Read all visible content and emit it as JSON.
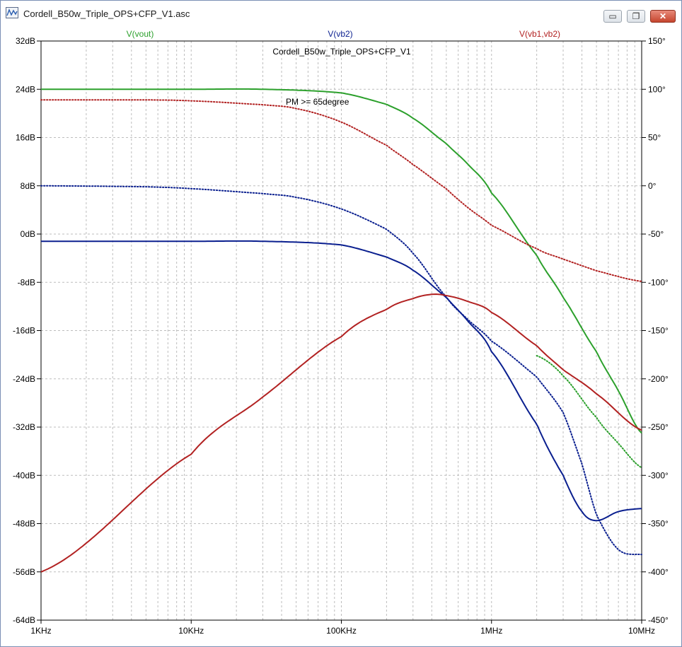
{
  "window": {
    "title": "Cordell_B50w_Triple_OPS+CFP_V1.asc",
    "icons": {
      "app": "ltspice-waveform-icon",
      "minimize": "minimize-icon",
      "maximize": "maximize-icon",
      "close": "close-icon"
    },
    "min_glyph": "▭",
    "max_glyph": "❐",
    "close_glyph": "✕"
  },
  "colors": {
    "vout": "#2ca02c",
    "vb2": "#0a1f8f",
    "vb1vb2": "#b22222",
    "grid": "#bdbdbd",
    "axis": "#000000"
  },
  "chart_data": {
    "type": "line",
    "title": "Cordell_B50w_Triple_OPS+CFP_V1",
    "annotation": "PM >= 65degree",
    "xscale": "log",
    "x_ticks": [
      "1KHz",
      "10KHz",
      "100KHz",
      "1MHz",
      "10MHz"
    ],
    "x_tick_values": [
      1000,
      10000,
      100000,
      1000000,
      10000000
    ],
    "xlim": [
      1000,
      10000000
    ],
    "ylim_left_db": [
      -64,
      32
    ],
    "y_left_ticks": [
      "32dB",
      "24dB",
      "16dB",
      "8dB",
      "0dB",
      "-8dB",
      "-16dB",
      "-24dB",
      "-32dB",
      "-40dB",
      "-48dB",
      "-56dB",
      "-64dB"
    ],
    "y_left_tick_values": [
      32,
      24,
      16,
      8,
      0,
      -8,
      -16,
      -24,
      -32,
      -40,
      -48,
      -56,
      -64
    ],
    "ylim_right_deg": [
      -450,
      150
    ],
    "y_right_ticks": [
      "150°",
      "100°",
      "50°",
      "0°",
      "-50°",
      "-100°",
      "-150°",
      "-200°",
      "-250°",
      "-300°",
      "-350°",
      "-400°",
      "-450°"
    ],
    "y_right_tick_values": [
      150,
      100,
      50,
      0,
      -50,
      -100,
      -150,
      -200,
      -250,
      -300,
      -350,
      -400,
      -450
    ],
    "grid": true,
    "legend": [
      "V(vout)",
      "V(vb2)",
      "V(vb1,vb2)"
    ],
    "series": [
      {
        "name": "V(vout)",
        "color_key": "vout",
        "kind": "magnitude",
        "unit": "dB",
        "x": [
          1000,
          10000,
          30000,
          100000,
          200000,
          300000,
          500000,
          700000,
          1000000,
          2000000,
          3000000,
          5000000,
          7000000,
          10000000
        ],
        "y": [
          24,
          24,
          24,
          23.4,
          21.5,
          19.2,
          15.0,
          11.5,
          6.8,
          -3.5,
          -10.5,
          -19.5,
          -26.0,
          -33.0
        ]
      },
      {
        "name": "V(vout)",
        "color_key": "vout",
        "kind": "phase",
        "unit": "deg",
        "x": [
          2000000,
          3000000,
          5000000,
          7000000,
          10000000
        ],
        "y": [
          -176,
          -197,
          -240,
          -267,
          -292
        ]
      },
      {
        "name": "V(vb2)",
        "color_key": "vb2",
        "kind": "magnitude",
        "unit": "dB",
        "x": [
          1000,
          10000,
          30000,
          100000,
          200000,
          300000,
          500000,
          700000,
          1000000,
          2000000,
          3000000,
          4000000,
          5000000,
          7000000,
          10000000
        ],
        "y": [
          -1.2,
          -1.2,
          -1.2,
          -1.8,
          -3.8,
          -6.0,
          -10.5,
          -14.5,
          -19.5,
          -31.5,
          -40.0,
          -46.0,
          -47.5,
          -46.0,
          -45.5
        ]
      },
      {
        "name": "V(vb2)",
        "color_key": "vb2",
        "kind": "phase",
        "unit": "deg",
        "x": [
          1000,
          5000,
          10000,
          30000,
          50000,
          100000,
          200000,
          300000,
          500000,
          700000,
          1000000,
          2000000,
          3000000,
          4000000,
          5000000,
          7000000,
          10000000
        ],
        "y": [
          0,
          -1,
          -3,
          -8,
          -12,
          -24,
          -45,
          -70,
          -115,
          -139,
          -161,
          -198,
          -235,
          -288,
          -341,
          -377,
          -382
        ]
      },
      {
        "name": "V(vb1,vb2)",
        "color_key": "vb1vb2",
        "kind": "magnitude",
        "unit": "dB",
        "x": [
          1000,
          10000,
          30000,
          100000,
          200000,
          300000,
          400000,
          500000,
          700000,
          1000000,
          2000000,
          3000000,
          5000000,
          10000000
        ],
        "y": [
          -56,
          -36.5,
          -27.0,
          -17.0,
          -12.5,
          -10.7,
          -10.0,
          -10.2,
          -11.2,
          -13.0,
          -18.5,
          -22.5,
          -26.5,
          -32.5
        ]
      },
      {
        "name": "V(vb1,vb2)",
        "color_key": "vb1vb2",
        "kind": "phase",
        "unit": "deg",
        "x": [
          1000,
          5000,
          10000,
          30000,
          50000,
          100000,
          200000,
          300000,
          500000,
          700000,
          1000000,
          2000000,
          3000000,
          5000000,
          10000000
        ],
        "y": [
          89,
          89,
          88,
          84,
          80,
          66,
          42,
          22,
          -3,
          -23,
          -41,
          -65,
          -76,
          -88,
          -99
        ]
      }
    ]
  }
}
